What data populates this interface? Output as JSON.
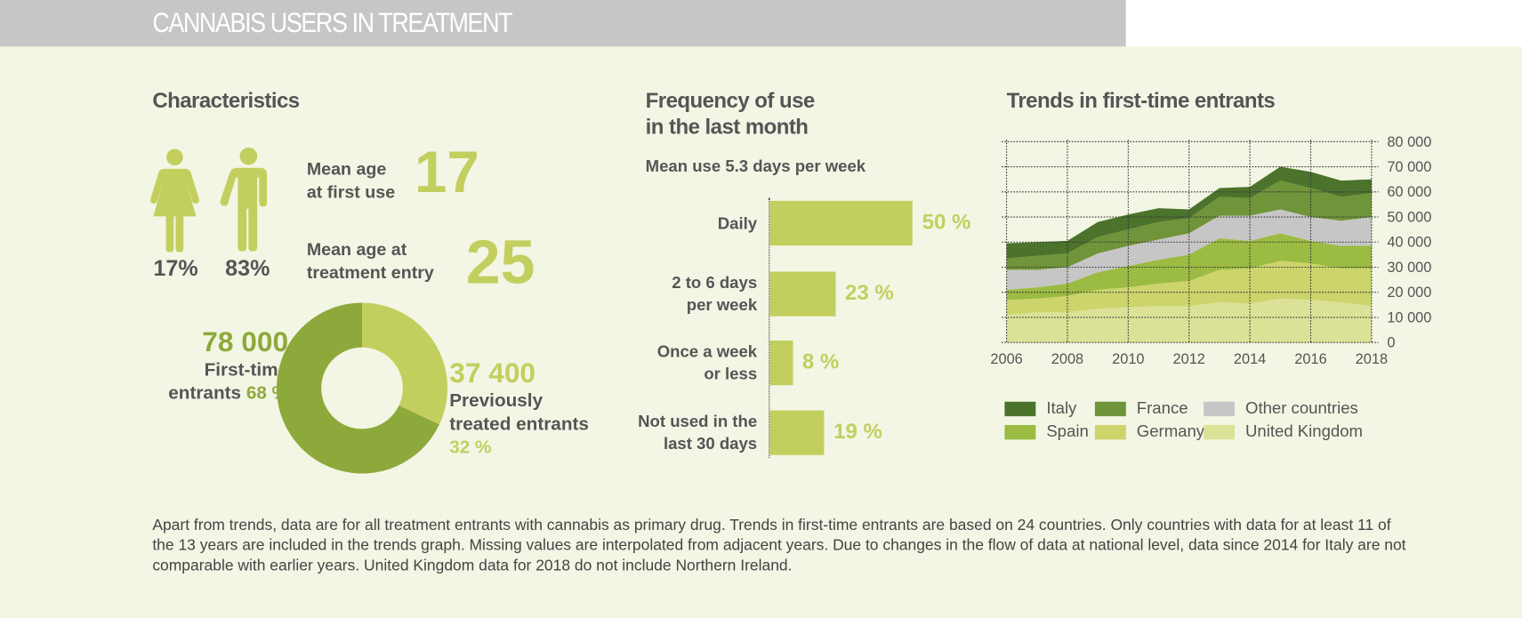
{
  "header": {
    "title": "CANNABIS USERS IN TREATMENT"
  },
  "characteristics": {
    "title": "Characteristics",
    "female_pct": "17%",
    "male_pct": "83%",
    "first_use_label": [
      "Mean age",
      "at first use"
    ],
    "first_use_value": "17",
    "treatment_label": [
      "Mean age at",
      "treatment entry"
    ],
    "treatment_value": "25",
    "first_time": {
      "count": "78 000",
      "label1": "First-time",
      "label2": "entrants",
      "pct": "68 %"
    },
    "previously": {
      "count": "37 400",
      "label1": "Previously",
      "label2": "treated entrants",
      "pct": "32 %"
    },
    "donut": {
      "values": [
        32,
        68
      ],
      "colors": [
        "#c2cf5f",
        "#8ea93b"
      ]
    }
  },
  "frequency": {
    "title": [
      "Frequency of use",
      "in the last month"
    ],
    "subtitle": "Mean use 5.3 days per week",
    "bars": [
      {
        "label": [
          "Daily"
        ],
        "value": 50,
        "text": "50 %"
      },
      {
        "label": [
          "2 to 6 days",
          "per week"
        ],
        "value": 23,
        "text": "23 %"
      },
      {
        "label": [
          "Once a week",
          "or less"
        ],
        "value": 8,
        "text": "8 %"
      },
      {
        "label": [
          "Not used in the",
          "last 30 days"
        ],
        "value": 19,
        "text": "19 %"
      }
    ],
    "bar_color": "#c2cf5f"
  },
  "chart_data": {
    "type": "area",
    "stacked": true,
    "title": "Trends in first-time entrants",
    "x": [
      2006,
      2007,
      2008,
      2009,
      2010,
      2011,
      2012,
      2013,
      2014,
      2015,
      2016,
      2017,
      2018
    ],
    "xticks": [
      "2006",
      "2008",
      "2010",
      "2012",
      "2014",
      "2016",
      "2018"
    ],
    "yticks": [
      "0",
      "10 000",
      "20 000",
      "30 000",
      "40 000",
      "50 000",
      "60 000",
      "70 000",
      "80 000"
    ],
    "ylim": [
      0,
      80000
    ],
    "grid": true,
    "y_axis_side": "right",
    "legend_placement": "bottom",
    "series": [
      {
        "name": "United Kingdom",
        "color": "#dbe297",
        "values": [
          11000,
          12000,
          12000,
          13500,
          14000,
          14500,
          14500,
          16000,
          15500,
          17500,
          17000,
          16000,
          14500
        ]
      },
      {
        "name": "Germany",
        "color": "#ccd46c",
        "values": [
          6000,
          5500,
          6500,
          7500,
          8000,
          9000,
          10000,
          13000,
          14000,
          15000,
          14500,
          13500,
          15000
        ]
      },
      {
        "name": "Spain",
        "color": "#9bbb42",
        "values": [
          4000,
          4500,
          5000,
          7000,
          8500,
          9500,
          10500,
          12500,
          11000,
          11000,
          9000,
          9000,
          9000
        ]
      },
      {
        "name": "Other countries",
        "color": "#c6c6c6",
        "values": [
          8000,
          7000,
          6500,
          7500,
          8000,
          8000,
          8500,
          9000,
          10000,
          9500,
          9500,
          10000,
          11500
        ]
      },
      {
        "name": "France",
        "color": "#6f9439",
        "values": [
          4500,
          5500,
          5500,
          6500,
          6500,
          7000,
          6000,
          7500,
          7000,
          11500,
          11500,
          9500,
          9500
        ]
      },
      {
        "name": "Italy",
        "color": "#4c732c",
        "values": [
          6000,
          5500,
          5000,
          6000,
          6000,
          5500,
          3500,
          3500,
          4500,
          5500,
          6500,
          6500,
          5500
        ]
      }
    ],
    "legend_order": [
      "Italy",
      "France",
      "Other countries",
      "Spain",
      "Germany",
      "United Kingdom"
    ]
  },
  "note": "Apart from trends, data are for all treatment entrants with cannabis as primary drug. Trends in first-time entrants are based on 24 countries. Only countries with data for at least 11 of the 13 years are included in the trends graph. Missing values are interpolated from adjacent years. Due to changes in the flow of data at national level, data since 2014 for Italy are not comparable with earlier years. United Kingdom data for 2018 do not include Northern Ireland."
}
